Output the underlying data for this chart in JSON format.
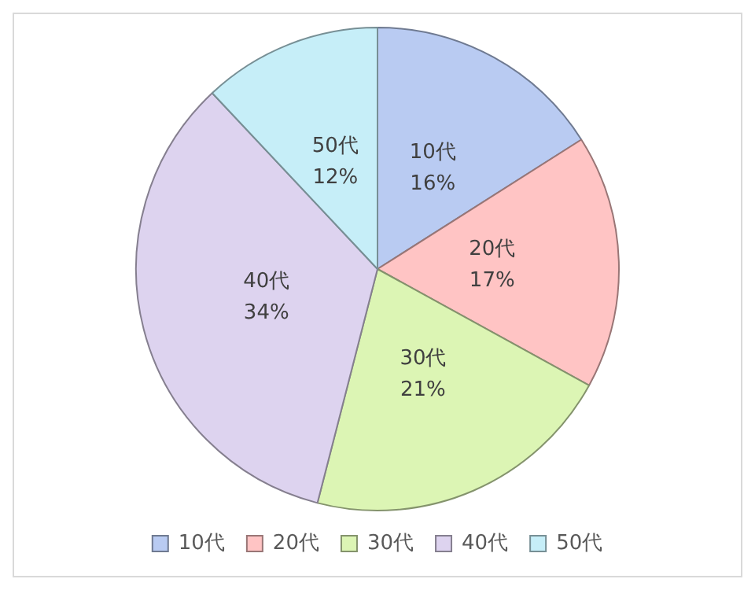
{
  "chart_data": {
    "type": "pie",
    "categories": [
      "10代",
      "20代",
      "30代",
      "40代",
      "50代"
    ],
    "values": [
      16,
      17,
      21,
      34,
      12
    ],
    "colors": [
      "#b9cbf2",
      "#ffc4c4",
      "#dcf5b4",
      "#ddd3ef",
      "#c6eef8"
    ],
    "value_labels": [
      "16%",
      "17%",
      "21%",
      "34%",
      "12%"
    ],
    "legend": "bottom"
  }
}
